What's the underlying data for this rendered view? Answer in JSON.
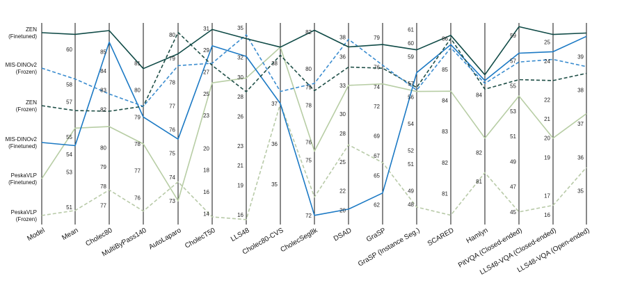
{
  "chart_data": {
    "type": "parallel_coordinates",
    "title": "",
    "axes": [
      "Model",
      "Mean",
      "Cholec80",
      "MultiByPass140",
      "AutoLaparo",
      "CholecT50",
      "LLS48",
      "Cholec80-CVS",
      "CholecSeg8k",
      "DSAD",
      "GraSP",
      "GraSP (Instance Seg.)",
      "SCARED",
      "Hamlyn",
      "PitVQA (Closed-ended)",
      "LLS48-VQA (Closed-ended)",
      "LLS48-VQA (Open-ended)"
    ],
    "axis_ranges": [
      null,
      [
        50.0,
        61.5
      ],
      [
        76.0,
        86.5
      ],
      [
        75.0,
        82.5
      ],
      [
        72.0,
        80.5
      ],
      [
        13.0,
        31.5
      ],
      [
        15.0,
        35.5
      ],
      [
        34.0,
        39.0
      ],
      [
        71.5,
        82.5
      ],
      [
        18.5,
        39.5
      ],
      [
        60.0,
        80.5
      ],
      [
        46.5,
        61.5
      ],
      [
        80.0,
        86.5
      ],
      [
        79.5,
        86.5
      ],
      [
        44.0,
        60.0
      ],
      [
        15.5,
        26.0
      ],
      [
        34.0,
        40.0
      ]
    ],
    "axis_ticks": [
      [],
      [
        51,
        53,
        54,
        55,
        57,
        58,
        60
      ],
      [
        77,
        78,
        79,
        80,
        82,
        83,
        84,
        85
      ],
      [
        76,
        77,
        78,
        79,
        80,
        81
      ],
      [
        73,
        74,
        75,
        76,
        77,
        78,
        79,
        80
      ],
      [
        14,
        16,
        18,
        20,
        23,
        25,
        27,
        29,
        31
      ],
      [
        16,
        19,
        21,
        23,
        26,
        28,
        30,
        32,
        35
      ],
      [
        35,
        36,
        37,
        38
      ],
      [
        72,
        75,
        76,
        78,
        79,
        80,
        82
      ],
      [
        20,
        22,
        25,
        28,
        30,
        33,
        36,
        38
      ],
      [
        62,
        65,
        67,
        69,
        72,
        74,
        76,
        79
      ],
      [
        48,
        49,
        51,
        52,
        54,
        56,
        57,
        59,
        60,
        61
      ],
      [
        81,
        82,
        83,
        84,
        85,
        86
      ],
      [
        81,
        82,
        84
      ],
      [
        45,
        47,
        49,
        51,
        53,
        55,
        57,
        59
      ],
      [
        16,
        17,
        19,
        20,
        21,
        22,
        24,
        25
      ],
      [
        35,
        36,
        37,
        38,
        39
      ]
    ],
    "series": [
      {
        "name": "ZEN (Finetuned)",
        "color": "#0f4a46",
        "dash": "solid",
        "values": [
          null,
          60.85,
          86.1,
          80.8,
          79.2,
          30.9,
          33.9,
          38.4,
          82.1,
          37.0,
          78.3,
          59.5,
          86.1,
          84.7,
          59.7,
          25.4,
          39.7
        ]
      },
      {
        "name": "MIS-DINOv2 (Frozen)",
        "color": "#3a8ccf",
        "dash": "dashed",
        "values": [
          null,
          58.3,
          82.8,
          79.4,
          78.7,
          27.8,
          34.3,
          37.3,
          79.2,
          37.8,
          76.2,
          56.5,
          85.7,
          84.4,
          56.9,
          24.1,
          38.7
        ]
      },
      {
        "name": "ZEN (Frozen)",
        "color": "#1e4e46",
        "dash": "dashed",
        "values": [
          null,
          56.5,
          81.9,
          79.4,
          80.1,
          27.6,
          28.5,
          38.2,
          78.8,
          34.9,
          75.9,
          56.7,
          86.0,
          84.2,
          55.5,
          23.0,
          38.5
        ]
      },
      {
        "name": "MIS-DINOv2 (Finetuned)",
        "color": "#1b79c4",
        "dash": "solid",
        "values": [
          null,
          54.5,
          85.5,
          79.0,
          75.6,
          29.4,
          32.1,
          37.0,
          72.0,
          20.1,
          63.2,
          57.8,
          85.8,
          84.5,
          57.6,
          24.5,
          39.6
        ]
      },
      {
        "name": "PeskaVLP (Finetuned)",
        "color": "#b7cda4",
        "dash": "solid",
        "values": [
          null,
          55.5,
          81.1,
          78.0,
          73.0,
          26.0,
          29.9,
          38.4,
          75.5,
          33.0,
          74.3,
          56.4,
          84.3,
          82.5,
          54.2,
          20.0,
          37.3
        ]
      },
      {
        "name": "PeskaVLP (Frozen)",
        "color": "#b8caa8",
        "dash": "dashed",
        "values": [
          null,
          50.8,
          77.8,
          75.5,
          73.8,
          13.7,
          15.5,
          37.0,
          73.0,
          26.8,
          66.3,
          47.8,
          80.3,
          81.3,
          45.0,
          16.5,
          35.7
        ]
      }
    ],
    "row_labels": [
      {
        "line1": "ZEN",
        "line2": "(Finetuned)"
      },
      {
        "line1": "MIS-DINOv2",
        "line2": "(Frozen)"
      },
      {
        "line1": "ZEN",
        "line2": "(Frozen)"
      },
      {
        "line1": "MIS-DINOv2",
        "line2": "(Finetuned)"
      },
      {
        "line1": "PeskaVLP",
        "line2": "(Finetuned)"
      },
      {
        "line1": "PeskaVLP",
        "line2": "(Frozen)"
      }
    ],
    "xlabel": "",
    "ylabel": ""
  }
}
